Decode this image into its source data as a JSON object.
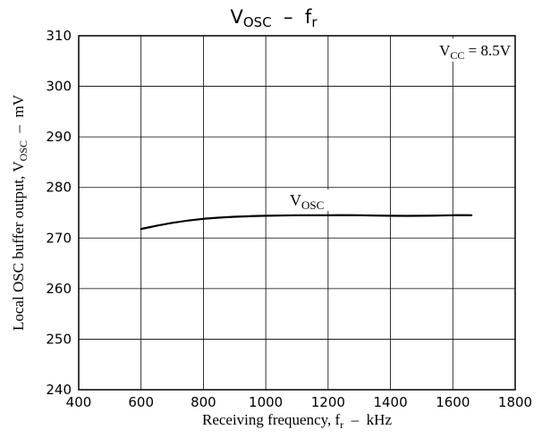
{
  "chart_data": {
    "type": "line",
    "title": {
      "main": "V",
      "sub": "OSC",
      "dash": "–",
      "f": "f",
      "fsub": "r"
    },
    "xlabel": {
      "pre": "Receiving frequency, f",
      "sub": "r",
      "post": "  –  kHz"
    },
    "ylabel": {
      "pre": "Local OSC buffer output, V",
      "sub": "OSC",
      "post": "  –  mV"
    },
    "xlim": [
      400,
      1800
    ],
    "ylim": [
      240,
      310
    ],
    "x_ticks": [
      400,
      600,
      800,
      1000,
      1200,
      1400,
      1600,
      1800
    ],
    "y_ticks": [
      240,
      250,
      260,
      270,
      280,
      290,
      300,
      310
    ],
    "grid": true,
    "annotation": {
      "pre": "V",
      "sub": "CC",
      "post": " = 8.5V"
    },
    "series": [
      {
        "name": {
          "pre": "V",
          "sub": "OSC"
        },
        "x": [
          600,
          700,
          800,
          900,
          1000,
          1100,
          1200,
          1300,
          1400,
          1500,
          1600,
          1660
        ],
        "y": [
          271.8,
          273.0,
          273.8,
          274.2,
          274.4,
          274.5,
          274.5,
          274.5,
          274.4,
          274.4,
          274.5,
          274.5
        ]
      }
    ]
  }
}
